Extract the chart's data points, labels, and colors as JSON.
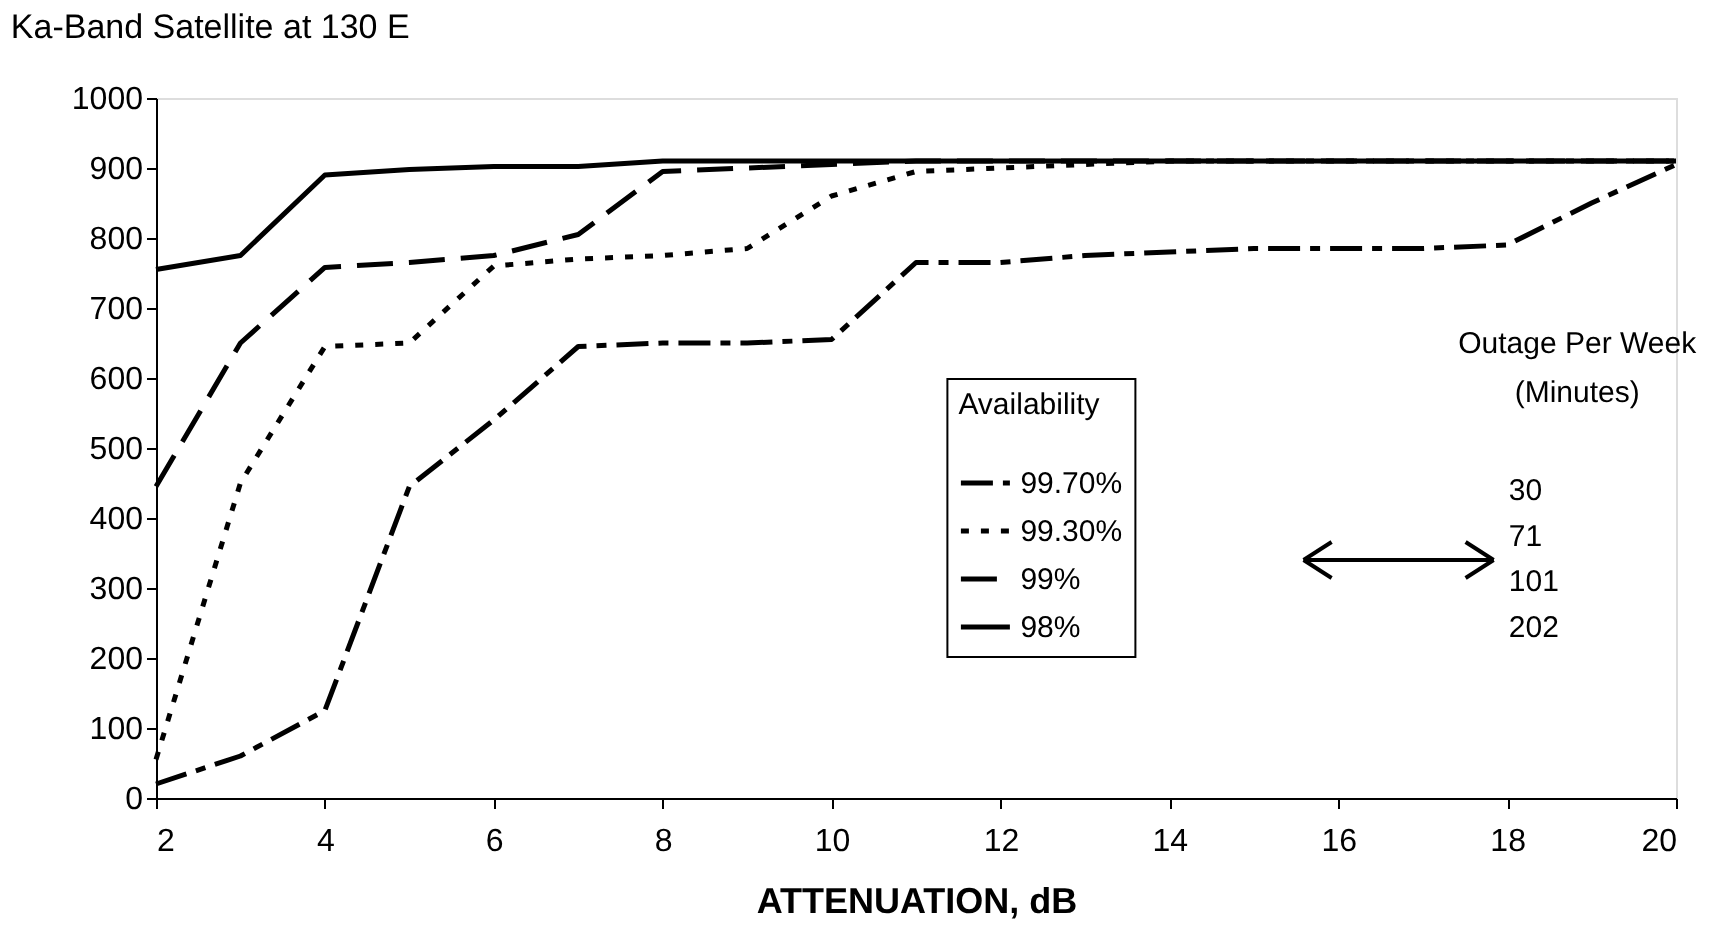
{
  "chart_data": {
    "type": "line",
    "title": "Ka-Band Satellite at 130 E",
    "xlabel": "ATTENUATION, dB",
    "x": [
      2,
      3,
      4,
      5,
      6,
      7,
      8,
      9,
      10,
      11,
      12,
      13,
      14,
      15,
      16,
      17,
      18,
      19,
      20
    ],
    "series": [
      {
        "name": "99.70%",
        "color": "#000000",
        "line_style": "dashed",
        "values": [
          20,
          60,
          125,
          445,
          540,
          645,
          650,
          650,
          655,
          765,
          765,
          775,
          780,
          785,
          785,
          785,
          790,
          850,
          905
        ]
      },
      {
        "name": "99.30%",
        "color": "#000000",
        "line_style": "dotted",
        "values": [
          55,
          450,
          645,
          650,
          760,
          770,
          775,
          785,
          860,
          895,
          900,
          905,
          910,
          910,
          910,
          910,
          910,
          910,
          910
        ]
      },
      {
        "name": "99%",
        "color": "#000000",
        "line_style": "dashed",
        "values": [
          445,
          650,
          758,
          765,
          775,
          805,
          895,
          900,
          905,
          910,
          910,
          910,
          910,
          910,
          910,
          910,
          910,
          910,
          910
        ]
      },
      {
        "name": "98%",
        "color": "#000000",
        "line_style": "solid",
        "values": [
          755,
          775,
          890,
          898,
          902,
          902,
          910,
          910,
          910,
          910,
          910,
          910,
          910,
          910,
          910,
          910,
          910,
          910,
          910
        ]
      }
    ],
    "legend_title": "Availability",
    "legend": "right",
    "annotations": [
      "Outage Per Week",
      "(Minutes)",
      "30",
      "71",
      "101",
      "202"
    ],
    "xlim": [
      2,
      20
    ],
    "xticks": [
      2,
      4,
      6,
      8,
      10,
      12,
      14,
      16,
      18,
      20
    ],
    "ylim": [
      0,
      1000
    ],
    "yticks": [
      0,
      100,
      200,
      300,
      400,
      500,
      600,
      700,
      800,
      900,
      1000
    ],
    "grid": false,
    "marker": "none"
  }
}
